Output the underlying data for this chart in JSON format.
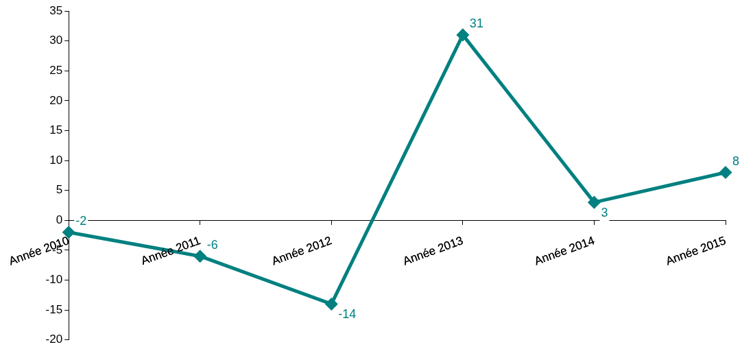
{
  "chart_data": {
    "type": "line",
    "categories": [
      "Année 2010",
      "Année 2011",
      "Année 2012",
      "Année 2013",
      "Année 2014",
      "Année 2015"
    ],
    "series": [
      {
        "color": "#008080",
        "values": [
          -2,
          -6,
          -14,
          31,
          3,
          8
        ]
      }
    ],
    "ylim": [
      -20,
      35
    ],
    "yticks": [
      -20,
      -15,
      -10,
      -5,
      0,
      5,
      10,
      15,
      20,
      25,
      30,
      35
    ],
    "grid": false,
    "legend": false,
    "marker": "diamond",
    "line_style": "solid",
    "data_labels": true
  }
}
